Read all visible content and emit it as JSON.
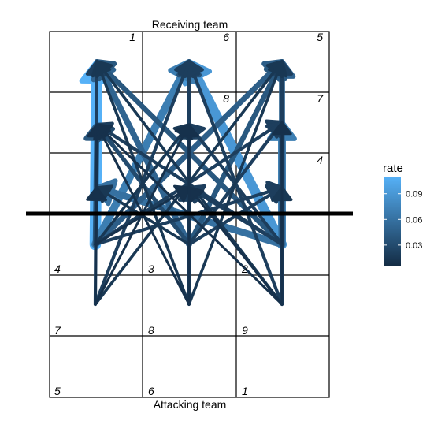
{
  "chart_data": {
    "type": "network",
    "top_label": "Receiving team",
    "bottom_label": "Attacking team",
    "zone_labels": {
      "receiving": [
        "1",
        "6",
        "5",
        "8",
        "7",
        "4"
      ],
      "attacking": [
        "4",
        "3",
        "2",
        "7",
        "8",
        "9",
        "5",
        "6",
        "1"
      ]
    },
    "legend": {
      "title": "rate",
      "ticks": [
        "0.09",
        "0.06",
        "0.03"
      ],
      "tick_values": [
        0.09,
        0.06,
        0.03
      ],
      "range": [
        0.005,
        0.11
      ],
      "color_low": "#132B43",
      "color_high": "#56B1F7"
    },
    "edges": [
      {
        "from": "A4",
        "to": "R1",
        "rate": 0.11
      },
      {
        "from": "A4",
        "to": "R6",
        "rate": 0.07
      },
      {
        "from": "A4",
        "to": "R5",
        "rate": 0.045
      },
      {
        "from": "A4",
        "to": "R8",
        "rate": 0.04
      },
      {
        "from": "A4",
        "to": "R7",
        "rate": 0.02
      },
      {
        "from": "A4",
        "to": "R4",
        "rate": 0.02
      },
      {
        "from": "A4",
        "to": "R8b",
        "rate": 0.015
      },
      {
        "from": "A4",
        "to": "R7b",
        "rate": 0.01
      },
      {
        "from": "A4",
        "to": "R4b",
        "rate": 0.015
      },
      {
        "from": "A3",
        "to": "R1",
        "rate": 0.05
      },
      {
        "from": "A3",
        "to": "R6",
        "rate": 0.035
      },
      {
        "from": "A3",
        "to": "R5",
        "rate": 0.04
      },
      {
        "from": "A3",
        "to": "R8",
        "rate": 0.03
      },
      {
        "from": "A3",
        "to": "R7",
        "rate": 0.02
      },
      {
        "from": "A3",
        "to": "R4",
        "rate": 0.02
      },
      {
        "from": "A3",
        "to": "R8b",
        "rate": 0.025
      },
      {
        "from": "A3",
        "to": "R7b",
        "rate": 0.02
      },
      {
        "from": "A3",
        "to": "R4b",
        "rate": 0.015
      },
      {
        "from": "A2",
        "to": "R1",
        "rate": 0.04
      },
      {
        "from": "A2",
        "to": "R6",
        "rate": 0.09
      },
      {
        "from": "A2",
        "to": "R5",
        "rate": 0.05
      },
      {
        "from": "A2",
        "to": "R8",
        "rate": 0.02
      },
      {
        "from": "A2",
        "to": "R7",
        "rate": 0.07
      },
      {
        "from": "A2",
        "to": "R4",
        "rate": 0.015
      },
      {
        "from": "A2",
        "to": "R8b",
        "rate": 0.02
      },
      {
        "from": "A2",
        "to": "R7b",
        "rate": 0.02
      },
      {
        "from": "A2",
        "to": "R4b",
        "rate": 0.06
      },
      {
        "from": "B7",
        "to": "R1",
        "rate": 0.02
      },
      {
        "from": "B7",
        "to": "R6",
        "rate": 0.02
      },
      {
        "from": "B7",
        "to": "R5",
        "rate": 0.015
      },
      {
        "from": "B7",
        "to": "R8",
        "rate": 0.01
      },
      {
        "from": "B7",
        "to": "R8b",
        "rate": 0.01
      },
      {
        "from": "B7",
        "to": "R4b",
        "rate": 0.01
      },
      {
        "from": "B8",
        "to": "R1",
        "rate": 0.015
      },
      {
        "from": "B8",
        "to": "R6",
        "rate": 0.02
      },
      {
        "from": "B8",
        "to": "R5",
        "rate": 0.015
      },
      {
        "from": "B8",
        "to": "R8",
        "rate": 0.01
      },
      {
        "from": "B8",
        "to": "R8b",
        "rate": 0.01
      },
      {
        "from": "B9",
        "to": "R1",
        "rate": 0.015
      },
      {
        "from": "B9",
        "to": "R6",
        "rate": 0.02
      },
      {
        "from": "B9",
        "to": "R5",
        "rate": 0.02
      },
      {
        "from": "B9",
        "to": "R8",
        "rate": 0.01
      },
      {
        "from": "B9",
        "to": "R7",
        "rate": 0.01
      },
      {
        "from": "B9",
        "to": "R7b",
        "rate": 0.01
      }
    ]
  }
}
